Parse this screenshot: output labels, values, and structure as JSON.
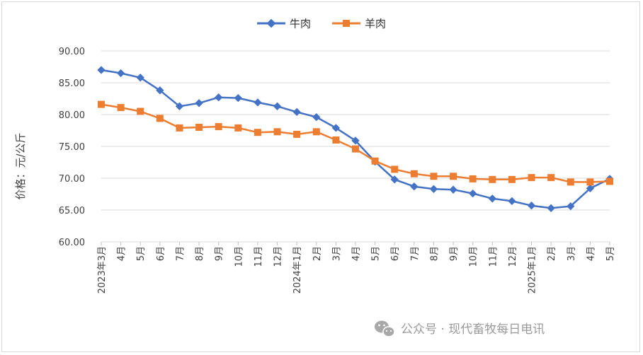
{
  "chart_data": {
    "type": "line",
    "title": "",
    "xlabel": "",
    "ylabel": "价格：元/公斤",
    "ylim": [
      60,
      90
    ],
    "yticks": [
      "60.00",
      "65.00",
      "70.00",
      "75.00",
      "80.00",
      "85.00",
      "90.00"
    ],
    "grid": true,
    "legend_position": "top-center",
    "categories": [
      "2023年3月",
      "4月",
      "5月",
      "6月",
      "7月",
      "8月",
      "9月",
      "10月",
      "11月",
      "12月",
      "2024年1月",
      "2月",
      "3月",
      "4月",
      "5月",
      "6月",
      "7月",
      "8月",
      "9月",
      "10月",
      "11月",
      "12月",
      "2025年1月",
      "2月",
      "3月",
      "4月",
      "5月"
    ],
    "series": [
      {
        "name": "牛肉",
        "color": "#4472C4",
        "marker": "diamond",
        "values": [
          87.0,
          86.5,
          85.8,
          83.8,
          81.3,
          81.8,
          82.7,
          82.6,
          81.9,
          81.3,
          80.4,
          79.6,
          77.9,
          75.9,
          72.6,
          69.8,
          68.7,
          68.3,
          68.2,
          67.6,
          66.8,
          66.4,
          65.7,
          65.3,
          65.6,
          68.4,
          69.9
        ]
      },
      {
        "name": "羊肉",
        "color": "#ED7D31",
        "marker": "square",
        "values": [
          81.6,
          81.1,
          80.5,
          79.4,
          77.9,
          78.0,
          78.1,
          77.9,
          77.2,
          77.3,
          76.9,
          77.3,
          76.0,
          74.6,
          72.7,
          71.4,
          70.7,
          70.3,
          70.3,
          69.9,
          69.8,
          69.8,
          70.1,
          70.1,
          69.4,
          69.4,
          69.5
        ]
      }
    ]
  },
  "watermark": {
    "icon": "wechat-icon",
    "text": "公众号 · 现代畜牧每日电讯"
  }
}
